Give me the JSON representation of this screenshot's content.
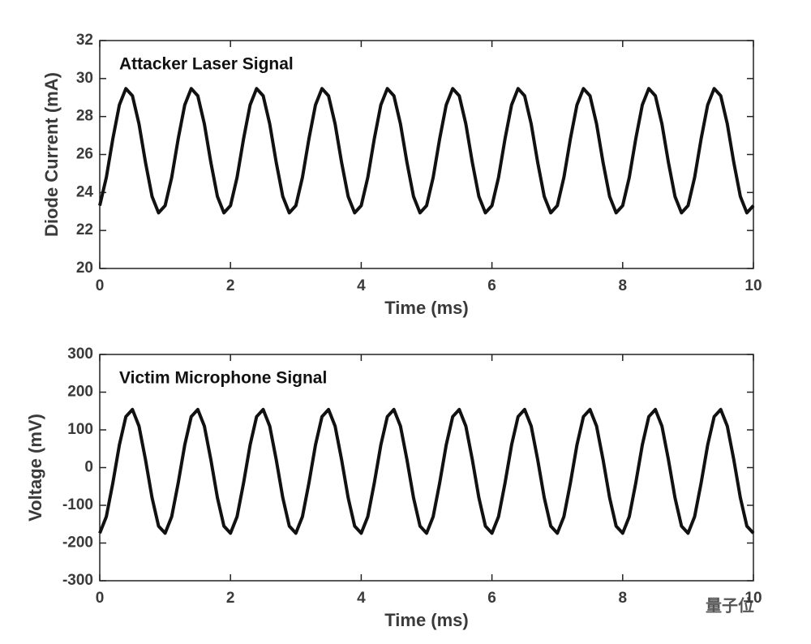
{
  "chart_data": [
    {
      "type": "line",
      "title": "Attacker Laser Signal",
      "xlabel": "Time (ms)",
      "ylabel": "Diode Current (mA)",
      "color": "#111111",
      "xlim": [
        0,
        10
      ],
      "xticks": [
        0,
        2,
        4,
        6,
        8,
        10
      ],
      "ylim": [
        20,
        32
      ],
      "yticks": [
        20,
        22,
        24,
        26,
        28,
        30,
        32
      ],
      "x": [
        0,
        0.1,
        0.2,
        0.3,
        0.4,
        0.5,
        0.6,
        0.7,
        0.8,
        0.9,
        1,
        1.1,
        1.2,
        1.3,
        1.4,
        1.5,
        1.6,
        1.7,
        1.8,
        1.9,
        2,
        2.1,
        2.2,
        2.3,
        2.4,
        2.5,
        2.6,
        2.7,
        2.8,
        2.9,
        3,
        3.1,
        3.2,
        3.3,
        3.4,
        3.5,
        3.6,
        3.7,
        3.8,
        3.9,
        4,
        4.1,
        4.2,
        4.3,
        4.4,
        4.5,
        4.6,
        4.7,
        4.8,
        4.9,
        5,
        5.1,
        5.2,
        5.3,
        5.4,
        5.5,
        5.6,
        5.7,
        5.8,
        5.9,
        6,
        6.1,
        6.2,
        6.3,
        6.4,
        6.5,
        6.6,
        6.7,
        6.8,
        6.9,
        7,
        7.1,
        7.2,
        7.3,
        7.4,
        7.5,
        7.6,
        7.7,
        7.8,
        7.9,
        8,
        8.1,
        8.2,
        8.3,
        8.4,
        8.5,
        8.6,
        8.7,
        8.8,
        8.9,
        9,
        9.1,
        9.2,
        9.3,
        9.4,
        9.5,
        9.6,
        9.7,
        9.8,
        9.9,
        10
      ],
      "values": [
        23.31,
        24.79,
        26.82,
        28.61,
        29.47,
        29.09,
        27.61,
        25.58,
        23.79,
        22.93,
        23.31,
        24.79,
        26.82,
        28.61,
        29.47,
        29.09,
        27.61,
        25.58,
        23.79,
        22.93,
        23.31,
        24.79,
        26.82,
        28.61,
        29.47,
        29.09,
        27.61,
        25.58,
        23.79,
        22.93,
        23.31,
        24.79,
        26.82,
        28.61,
        29.47,
        29.09,
        27.61,
        25.58,
        23.79,
        22.93,
        23.31,
        24.79,
        26.82,
        28.61,
        29.47,
        29.09,
        27.61,
        25.58,
        23.79,
        22.93,
        23.31,
        24.79,
        26.82,
        28.61,
        29.47,
        29.09,
        27.61,
        25.58,
        23.79,
        22.93,
        23.31,
        24.79,
        26.82,
        28.61,
        29.47,
        29.09,
        27.61,
        25.58,
        23.79,
        22.93,
        23.31,
        24.79,
        26.82,
        28.61,
        29.47,
        29.09,
        27.61,
        25.58,
        23.79,
        22.93,
        23.31,
        24.79,
        26.82,
        28.61,
        29.47,
        29.09,
        27.61,
        25.58,
        23.79,
        22.93,
        23.31,
        24.79,
        26.82,
        28.61,
        29.47,
        29.09,
        27.61,
        25.58,
        23.79,
        22.93,
        23.31
      ]
    },
    {
      "type": "line",
      "title": "Victim Microphone Signal",
      "xlabel": "Time (ms)",
      "ylabel": "Voltage (mV)",
      "color": "#111111",
      "xlim": [
        0,
        10
      ],
      "xticks": [
        0,
        2,
        4,
        6,
        8,
        10
      ],
      "ylim": [
        -300,
        300
      ],
      "yticks": [
        -300,
        -200,
        -100,
        0,
        100,
        200,
        300
      ],
      "x": [
        0,
        0.1,
        0.2,
        0.3,
        0.4,
        0.5,
        0.6,
        0.7,
        0.8,
        0.9,
        1,
        1.1,
        1.2,
        1.3,
        1.4,
        1.5,
        1.6,
        1.7,
        1.8,
        1.9,
        2,
        2.1,
        2.2,
        2.3,
        2.4,
        2.5,
        2.6,
        2.7,
        2.8,
        2.9,
        3,
        3.1,
        3.2,
        3.3,
        3.4,
        3.5,
        3.6,
        3.7,
        3.8,
        3.9,
        4,
        4.1,
        4.2,
        4.3,
        4.4,
        4.5,
        4.6,
        4.7,
        4.8,
        4.9,
        5,
        5.1,
        5.2,
        5.3,
        5.4,
        5.5,
        5.6,
        5.7,
        5.8,
        5.9,
        6,
        6.1,
        6.2,
        6.3,
        6.4,
        6.5,
        6.6,
        6.7,
        6.8,
        6.9,
        7,
        7.1,
        7.2,
        7.3,
        7.4,
        7.5,
        7.6,
        7.7,
        7.8,
        7.9,
        8,
        8.1,
        8.2,
        8.3,
        8.4,
        8.5,
        8.6,
        8.7,
        8.8,
        8.9,
        9,
        9.1,
        9.2,
        9.3,
        9.4,
        9.5,
        9.6,
        9.7,
        9.8,
        9.9,
        10
      ],
      "values": [
        -174,
        -130,
        -41,
        60,
        135,
        154,
        110,
        21,
        -80,
        -155,
        -174,
        -130,
        -41,
        60,
        135,
        154,
        110,
        21,
        -80,
        -155,
        -174,
        -130,
        -41,
        60,
        135,
        154,
        110,
        21,
        -80,
        -155,
        -174,
        -130,
        -41,
        60,
        135,
        154,
        110,
        21,
        -80,
        -155,
        -174,
        -130,
        -41,
        60,
        135,
        154,
        110,
        21,
        -80,
        -155,
        -174,
        -130,
        -41,
        60,
        135,
        154,
        110,
        21,
        -80,
        -155,
        -174,
        -130,
        -41,
        60,
        135,
        154,
        110,
        21,
        -80,
        -155,
        -174,
        -130,
        -41,
        60,
        135,
        154,
        110,
        21,
        -80,
        -155,
        -174,
        -130,
        -41,
        60,
        135,
        154,
        110,
        21,
        -80,
        -155,
        -174,
        -130,
        -41,
        60,
        135,
        154,
        110,
        21,
        -80,
        -155,
        -174
      ]
    }
  ],
  "watermark": "量子位"
}
